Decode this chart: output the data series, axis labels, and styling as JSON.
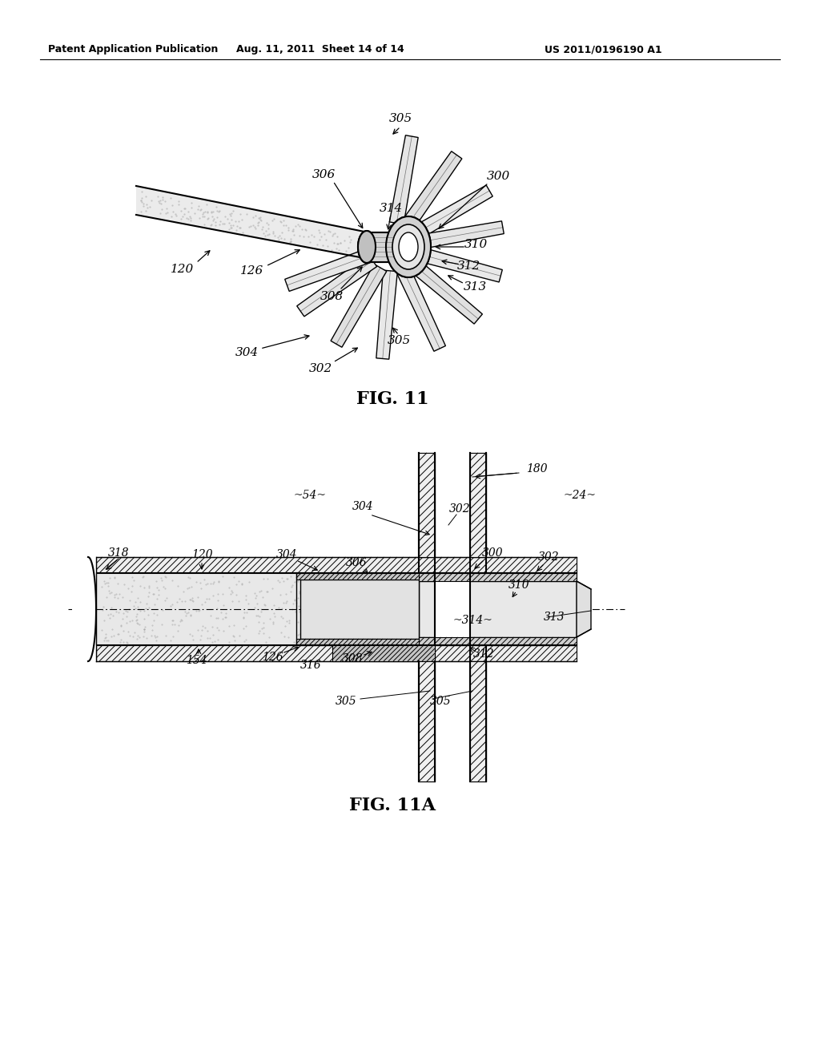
{
  "bg_color": "#ffffff",
  "header_left": "Patent Application Publication",
  "header_mid": "Aug. 11, 2011  Sheet 14 of 14",
  "header_right": "US 2011/0196190 A1"
}
